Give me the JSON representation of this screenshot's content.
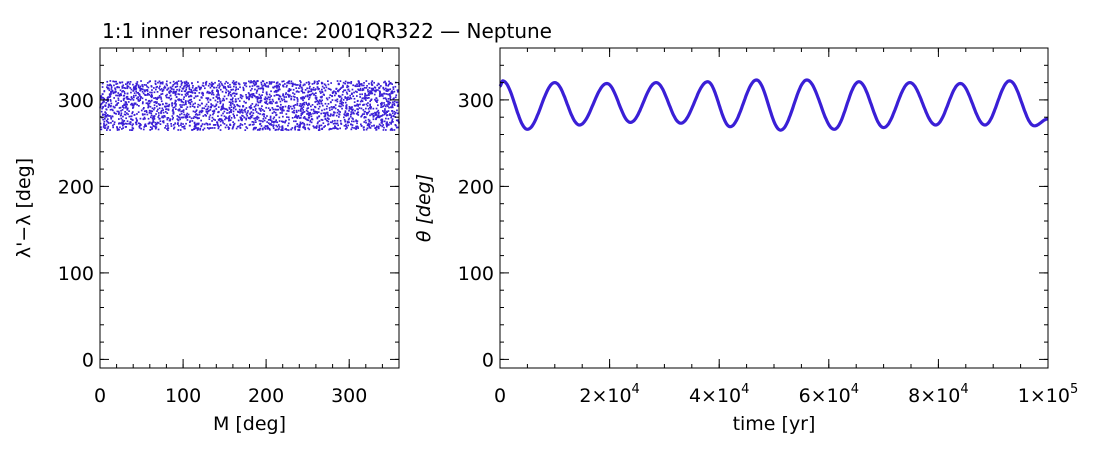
{
  "title": "1:1 inner resonance: 2001QR322 — Neptune",
  "colors": {
    "data": "#3a1fd6",
    "axis": "#000000",
    "background": "#ffffff"
  },
  "chart_data": [
    {
      "type": "scatter",
      "xlabel": "M [deg]",
      "ylabel": "λ'−λ [deg]",
      "xlim": [
        0,
        360
      ],
      "ylim": [
        -10,
        360
      ],
      "xticks": [
        0,
        100,
        200,
        300
      ],
      "xtick_labels": [
        "0",
        "100",
        "200",
        "300"
      ],
      "yticks": [
        0,
        100,
        200,
        300
      ],
      "ytick_labels": [
        "0",
        "100",
        "200",
        "300"
      ],
      "grid": false,
      "series": [
        {
          "description": "dense scatter band filling M 0–360",
          "y_range": [
            265,
            322
          ]
        }
      ]
    },
    {
      "type": "line",
      "xlabel": "time [yr]",
      "ylabel": "θ [deg]",
      "xlim": [
        0,
        100000
      ],
      "ylim": [
        -10,
        360
      ],
      "xticks": [
        0,
        20000,
        40000,
        60000,
        80000,
        100000
      ],
      "xtick_labels": [
        {
          "base": "0",
          "exp": ""
        },
        {
          "base": "2×10",
          "exp": "4"
        },
        {
          "base": "4×10",
          "exp": "4"
        },
        {
          "base": "6×10",
          "exp": "4"
        },
        {
          "base": "8×10",
          "exp": "4"
        },
        {
          "base": "1×10",
          "exp": "5"
        }
      ],
      "yticks": [
        0,
        100,
        200,
        300
      ],
      "ytick_labels": [
        "0",
        "100",
        "200",
        "300"
      ],
      "grid": false,
      "series": [
        {
          "x": [
            0,
            500,
            5000,
            10000,
            14500,
            19500,
            23800,
            28500,
            33000,
            37900,
            42000,
            46800,
            51200,
            56000,
            61000,
            65500,
            70000,
            74800,
            79500,
            84000,
            88500,
            93000,
            97500,
            100000
          ],
          "y": [
            316,
            322,
            266,
            320,
            271,
            319,
            274,
            320,
            273,
            321,
            269,
            323,
            265,
            323,
            266,
            321,
            268,
            320,
            271,
            319,
            271,
            322,
            270,
            278
          ]
        }
      ]
    }
  ]
}
